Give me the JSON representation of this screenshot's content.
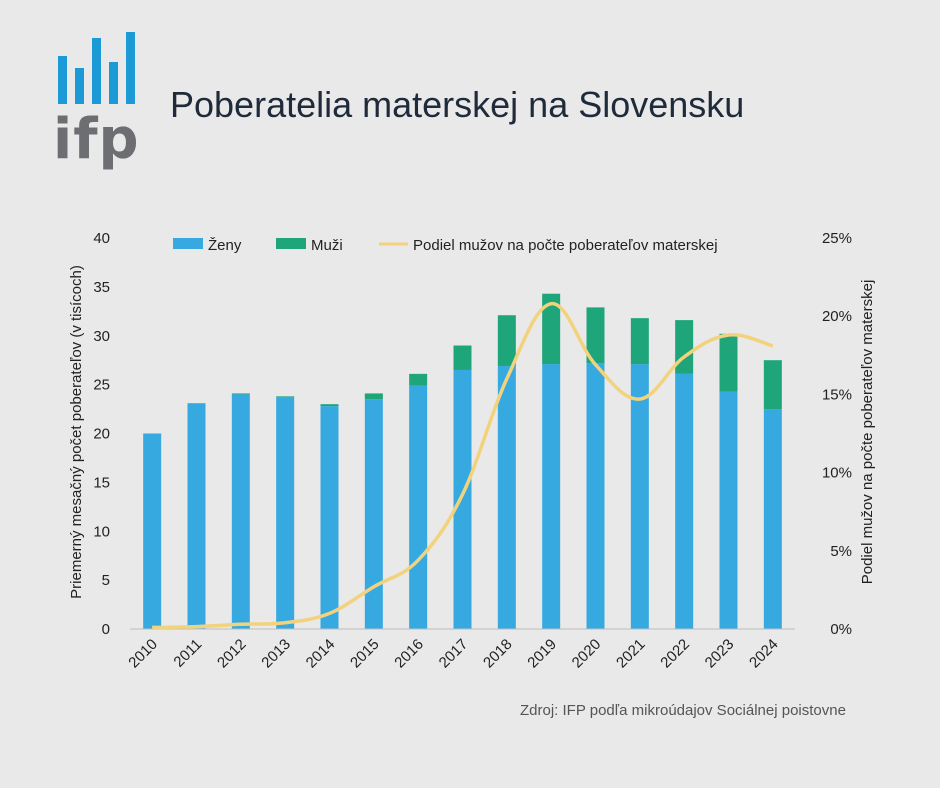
{
  "header": {
    "title": "Poberatelia materskej na Slovensku",
    "logo_text": "ifp"
  },
  "source": "Zdroj:  IFP podľa mikroúdajov Sociálnej poistovne",
  "colors": {
    "women": "#36a9e1",
    "men": "#1fa57a",
    "share_line": "#f2d27c",
    "logo_bars": "#1c9ad6",
    "logo_text": "#6d6e71"
  },
  "chart_data": {
    "type": "bar",
    "stacked": true,
    "categories": [
      "2010",
      "2011",
      "2012",
      "2013",
      "2014",
      "2015",
      "2016",
      "2017",
      "2018",
      "2019",
      "2020",
      "2021",
      "2022",
      "2023",
      "2024"
    ],
    "series": [
      {
        "name": "Ženy",
        "values": [
          20.0,
          23.1,
          24.0,
          23.7,
          22.8,
          23.5,
          24.9,
          26.5,
          26.9,
          27.1,
          27.2,
          27.1,
          26.1,
          24.3,
          22.5
        ]
      },
      {
        "name": "Muži",
        "values": [
          0.0,
          0.0,
          0.1,
          0.1,
          0.2,
          0.6,
          1.2,
          2.5,
          5.2,
          7.2,
          5.7,
          4.7,
          5.5,
          5.9,
          5.0
        ]
      }
    ],
    "line_series": {
      "name": "Podiel mužov na počte poberateľov materskej",
      "axis": "right",
      "values": [
        0.1,
        0.15,
        0.3,
        0.4,
        1.0,
        2.7,
        4.4,
        8.6,
        16.0,
        20.8,
        16.9,
        14.7,
        17.4,
        18.8,
        18.1
      ]
    },
    "ylabel": "Priemerný mesačný počet poberateľov (v tisícoch)",
    "ylabel_right": "Podiel mužov na počte poberateľov materskej",
    "ylim": [
      0,
      40
    ],
    "ylim_right": [
      0,
      25
    ],
    "yticks": [
      "0",
      "5",
      "10",
      "15",
      "20",
      "25",
      "30",
      "35",
      "40"
    ],
    "yticks_right": [
      "0%",
      "5%",
      "10%",
      "15%",
      "20%",
      "25%"
    ],
    "legend_position": "top",
    "grid": false
  }
}
